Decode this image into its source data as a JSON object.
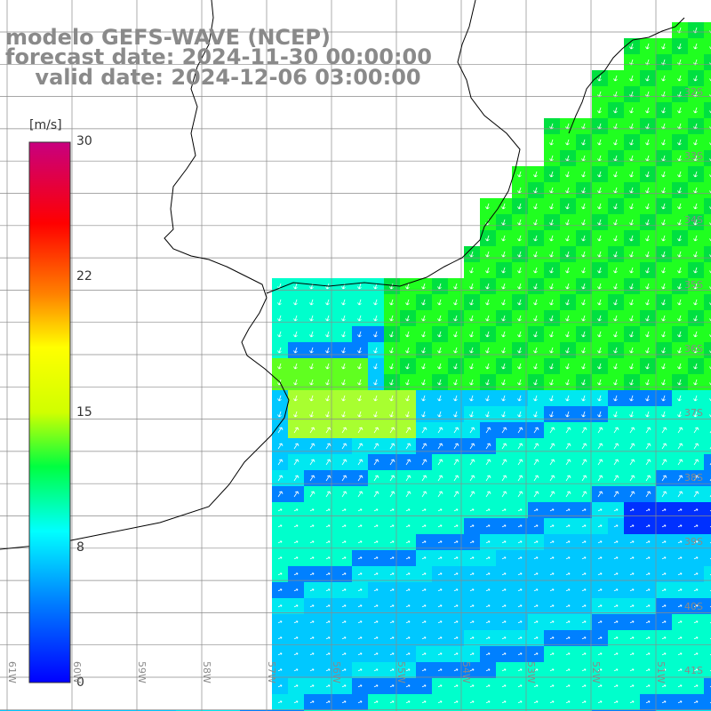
{
  "header": {
    "line1": "modelo GEFS-WAVE (NCEP)",
    "line2": "forecast date: 2024-11-30 00:00:00",
    "line3": "    valid date: 2024-12-06 03:00:00"
  },
  "colorbar": {
    "unit": "[m/s]",
    "ticks": [
      "30",
      "22",
      "15",
      "8",
      "0"
    ]
  },
  "latitude_labels": [
    "32S",
    "33S",
    "34S",
    "35S",
    "36S",
    "37S",
    "38S",
    "39S",
    "40S",
    "41S"
  ],
  "longitude_labels": [
    "61W",
    "60W",
    "59W",
    "58W",
    "57W",
    "56W",
    "55W",
    "54W",
    "53W",
    "52W",
    "51W"
  ],
  "colors": {
    "land": "#ffffff",
    "coast": "#000000",
    "grid": "#8a8a8a",
    "arrows": "#ffffff",
    "header_text": "#8a8a8a"
  }
}
